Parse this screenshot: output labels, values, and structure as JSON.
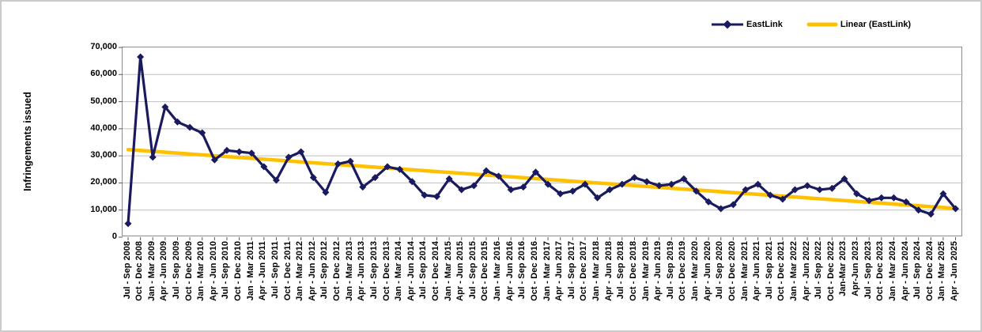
{
  "figure": {
    "background": "#ffffff",
    "border_color": "#cbcbcb"
  },
  "y_axis": {
    "title": "Infringements issued",
    "tick_labels": [
      "70,000",
      "60,000",
      "50,000",
      "40,000",
      "30,000",
      "20,000",
      "10,000",
      "0"
    ]
  },
  "legend": {
    "items": [
      {
        "label": "EastLink",
        "marker": "line-with-diamond",
        "color": "#1A1A5E"
      },
      {
        "label": "Linear (EastLink)",
        "marker": "thick-line",
        "color": "#FFC000"
      }
    ]
  },
  "colors": {
    "series": "#1A1A5E",
    "trendline": "#FFC000",
    "gridline": "#BFBFBF",
    "plot_border": "#8C8C8C",
    "tick": "#5A5A5A",
    "text": "#000000"
  },
  "chart_data": {
    "type": "line",
    "title": "",
    "xlabel": "",
    "ylabel": "Infringements issued",
    "ylim": [
      0,
      70000
    ],
    "ytick_step": 10000,
    "grid": true,
    "legend_position": "top-right",
    "categories": [
      "Jul - Sep 2008",
      "Oct - Dec 2008",
      "Jan - Mar 2009",
      "Apr - Jun 2009",
      "Jul - Sep 2009",
      "Oct - Dec 2009",
      "Jan - Mar 2010",
      "Apr - Jun 2010",
      "Jul - Sep 2010",
      "Oct - Dec 2010",
      "Jan - Mar 2011",
      "Apr - Jun 2011",
      "Jul - Sep 2011",
      "Oct - Dec 2011",
      "Jan - Mar 2012",
      "Apr - Jun 2012",
      "Jul - Sep 2012",
      "Oct - Dec 2012",
      "Jan - Mar 2013",
      "Apr - Jun 2013",
      "Jul - Sep 2013",
      "Oct - Dec 2013",
      "Jan - Mar 2014",
      "Apr - Jun 2014",
      "Jul - Sep 2014",
      "Oct - Dec 2014",
      "Jan - Mar 2015",
      "Apr - Jun 2015",
      "Jul - Sep 2015",
      "Oct - Dec 2015",
      "Jan - Mar 2016",
      "Apr - Jun 2016",
      "Jul - Sep 2016",
      "Oct - Dec 2016",
      "Jan - Mar 2017",
      "Apr - Jun 2017",
      "Jul - Sep 2017",
      "Oct - Dec 2017",
      "Jan - Mar 2018",
      "Apr - Jun 2018",
      "Jul - Sep 2018",
      "Oct - Dec 2018",
      "Jan - Mar 2019",
      "Apr - Jun 2019",
      "Jul - Sep 2019",
      "Oct - Dec 2019",
      "Jan - Mar 2020",
      "Apr - Jun 2020",
      "Jul - Sep 2020",
      "Oct - Dec 2020",
      "Jan - Mar 2021",
      "Apr - Jun 2021",
      "Jul - Sep 2021",
      "Oct - Dec 2021",
      "Jan - Mar 2022",
      "Apr - Jun 2022",
      "Jul - Sep 2022",
      "Oct - Dec 2022",
      "Jan-Mar 2023",
      "Apr-Jun 2023",
      "Jul - Sep 2023",
      "Oct - Dec 2023",
      "Jan - Mar 2024",
      "Apr - Jun 2024",
      "Jul - Sep 2024",
      "Oct - Dec 2024",
      "Jan - Mar 2025",
      "Apr - Jun 2025"
    ],
    "series": [
      {
        "name": "EastLink",
        "color": "#1A1A5E",
        "marker": "diamond",
        "values": [
          5000,
          66500,
          29500,
          48000,
          42500,
          40500,
          38500,
          28500,
          32000,
          31500,
          31000,
          26000,
          21000,
          29500,
          31500,
          22000,
          16500,
          27000,
          28000,
          18500,
          22000,
          26000,
          25000,
          20500,
          15500,
          15000,
          21500,
          17500,
          19000,
          24500,
          22500,
          17500,
          18500,
          24000,
          19500,
          16000,
          17000,
          19500,
          14500,
          17500,
          19500,
          22000,
          20500,
          19000,
          19500,
          21500,
          17000,
          13000,
          10500,
          12000,
          17500,
          19500,
          15500,
          14000,
          17500,
          19000,
          17500,
          18000,
          21500,
          16000,
          13500,
          14500,
          14500,
          13000,
          10000,
          8500,
          16000,
          10500
        ]
      }
    ],
    "trendline": {
      "name": "Linear (EastLink)",
      "color": "#FFC000",
      "start_value": 32300,
      "end_value": 10600
    }
  }
}
